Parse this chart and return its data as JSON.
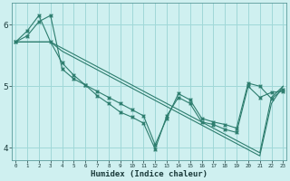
{
  "title": "",
  "xlabel": "Humidex (Indice chaleur)",
  "bg_color": "#cff0f0",
  "grid_color": "#a0d8d8",
  "line_color": "#2d7d6e",
  "x": [
    0,
    1,
    2,
    3,
    4,
    5,
    6,
    7,
    8,
    9,
    10,
    11,
    12,
    13,
    14,
    15,
    16,
    17,
    18,
    19,
    20,
    21,
    22,
    23
  ],
  "series1": [
    5.72,
    5.82,
    6.05,
    6.15,
    5.28,
    5.12,
    5.02,
    4.92,
    4.82,
    4.72,
    4.62,
    4.52,
    4.05,
    4.48,
    4.88,
    4.78,
    4.48,
    4.42,
    4.38,
    4.32,
    5.05,
    5.0,
    4.8,
    4.95
  ],
  "series2": [
    5.72,
    5.9,
    6.15,
    5.72,
    5.38,
    5.18,
    5.02,
    4.85,
    4.72,
    4.58,
    4.5,
    4.4,
    3.98,
    4.52,
    4.82,
    4.72,
    4.42,
    4.38,
    4.3,
    4.25,
    5.0,
    4.82,
    4.9,
    4.92
  ],
  "series3": [
    5.72,
    5.72,
    5.72,
    5.72,
    5.57,
    5.47,
    5.37,
    5.27,
    5.17,
    5.07,
    4.97,
    4.87,
    4.77,
    4.67,
    4.57,
    4.47,
    4.37,
    4.27,
    4.17,
    4.07,
    3.97,
    3.87,
    4.72,
    5.0
  ],
  "series4": [
    5.72,
    5.72,
    5.72,
    5.72,
    5.62,
    5.52,
    5.42,
    5.32,
    5.22,
    5.12,
    5.02,
    4.92,
    4.82,
    4.72,
    4.62,
    4.52,
    4.42,
    4.32,
    4.22,
    4.12,
    4.02,
    3.92,
    4.82,
    5.0
  ],
  "ylim": [
    3.8,
    6.35
  ],
  "yticks": [
    4,
    5,
    6
  ],
  "xlim": [
    -0.3,
    23.3
  ]
}
